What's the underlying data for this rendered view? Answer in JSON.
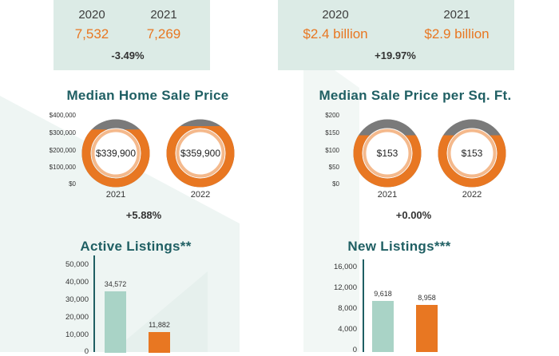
{
  "top_left": {
    "years": [
      "2020",
      "2021"
    ],
    "values": [
      "7,532",
      "7,269"
    ],
    "change": "-3.49%"
  },
  "top_right": {
    "years": [
      "2020",
      "2021"
    ],
    "values": [
      "$2.4 billion",
      "$2.9 billion"
    ],
    "change": "+19.97%"
  },
  "colors": {
    "teal": "#1f5f63",
    "orange": "#e87722",
    "mint": "#a9d3c6",
    "gray": "#7a7a7a",
    "panel": "#dcebe6"
  },
  "chart_data": [
    {
      "type": "pie",
      "title": "Median Home Sale Price",
      "yticks": [
        "$400,000",
        "$300,000",
        "$200,000",
        "$100,000",
        "$0"
      ],
      "ylim": [
        0,
        400000
      ],
      "categories": [
        "2021",
        "2022"
      ],
      "values": [
        339900,
        359900
      ],
      "value_labels": [
        "$339,900",
        "$359,900"
      ],
      "change": "+5.88%"
    },
    {
      "type": "pie",
      "title": "Median Sale Price per Sq. Ft.",
      "yticks": [
        "$200",
        "$150",
        "$100",
        "$50",
        "$0"
      ],
      "ylim": [
        0,
        200
      ],
      "categories": [
        "2021",
        "2022"
      ],
      "values": [
        153,
        153
      ],
      "value_labels": [
        "$153",
        "$153"
      ],
      "change": "+0.00%"
    },
    {
      "type": "bar",
      "title": "Active Listings**",
      "yticks": [
        "50,000",
        "40,000",
        "30,000",
        "20,000",
        "10,000",
        "0"
      ],
      "ylim": [
        0,
        50000
      ],
      "values": [
        34572,
        11882
      ],
      "value_labels": [
        "34,572",
        "11,882"
      ]
    },
    {
      "type": "bar",
      "title": "New Listings***",
      "yticks": [
        "16,000",
        "12,000",
        "8,000",
        "4,000",
        "0"
      ],
      "ylim": [
        0,
        16000
      ],
      "values": [
        9618,
        8958
      ],
      "value_labels": [
        "9,618",
        "8,958"
      ]
    }
  ]
}
